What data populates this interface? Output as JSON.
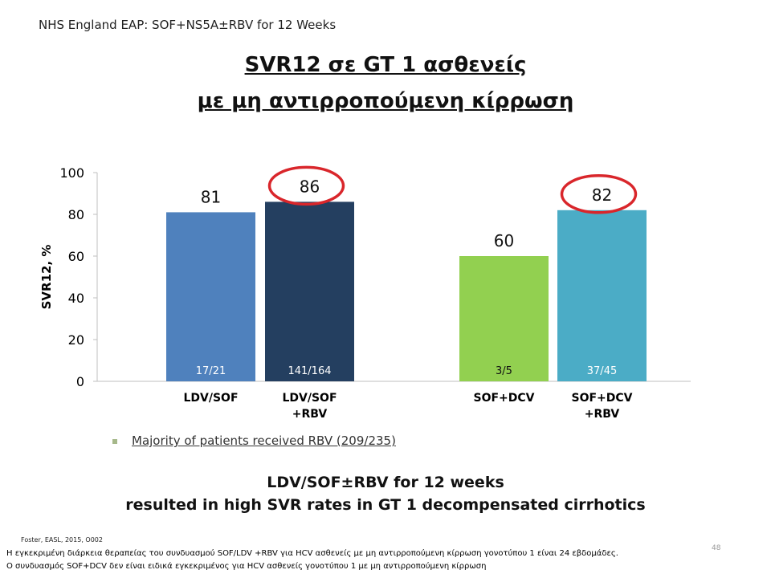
{
  "header": {
    "text": "NHS England EAP: SOF+NS5A±RBV for 12 Weeks"
  },
  "title": {
    "line1": "SVR12 σε GT 1 ασθενείς",
    "line2": " με μη αντιρροπούμενη κίρρωση"
  },
  "chart_data": {
    "type": "bar",
    "ylabel": "SVR12, %",
    "ylim": [
      0,
      100
    ],
    "yticks": [
      0,
      20,
      40,
      60,
      80,
      100
    ],
    "grid": false,
    "categories": [
      "LDV/SOF",
      "LDV/SOF\n+RBV",
      "SOF+DCV",
      "SOF+DCV\n+RBV"
    ],
    "category_lines": [
      [
        "LDV/SOF"
      ],
      [
        "LDV/SOF",
        "+RBV"
      ],
      [
        "SOF+DCV"
      ],
      [
        "SOF+DCV",
        "+RBV"
      ]
    ],
    "values": [
      81,
      86,
      60,
      82
    ],
    "value_labels": [
      "81",
      "86",
      "60",
      "82"
    ],
    "fractions": [
      "17/21",
      "141/164",
      "3/5",
      "37/45"
    ],
    "colors": [
      "#4f81bd",
      "#243f60",
      "#92d050",
      "#4bacc6"
    ],
    "highlighted": [
      false,
      true,
      false,
      true
    ],
    "highlight_color": "#d9262b"
  },
  "bullet": {
    "text": "Majority of patients received RBV (209/235)"
  },
  "conclusion": {
    "line1": "LDV/SOF±RBV for 12 weeks",
    "line2": "resulted in high SVR rates in GT 1 decompensated cirrhotics"
  },
  "reference": "Foster, EASL, 2015, O002",
  "notes": {
    "line1": "Η εγκεκριμένη διάρκεια θεραπείας του συνδυασμού SOF/LDV +RBV για HCV ασθενείς με μη αντιρροπούμενη κίρρωση γονοτύπου 1 είναι 24 εβδομάδες.",
    "line2": "Ο συνδυασμός SOF+DCV δεν είναι ειδικά εγκεκριμένος για HCV ασθενείς γονοτύπου 1 με μη αντιρροπούμενη κίρρωση"
  },
  "page_number": "48"
}
